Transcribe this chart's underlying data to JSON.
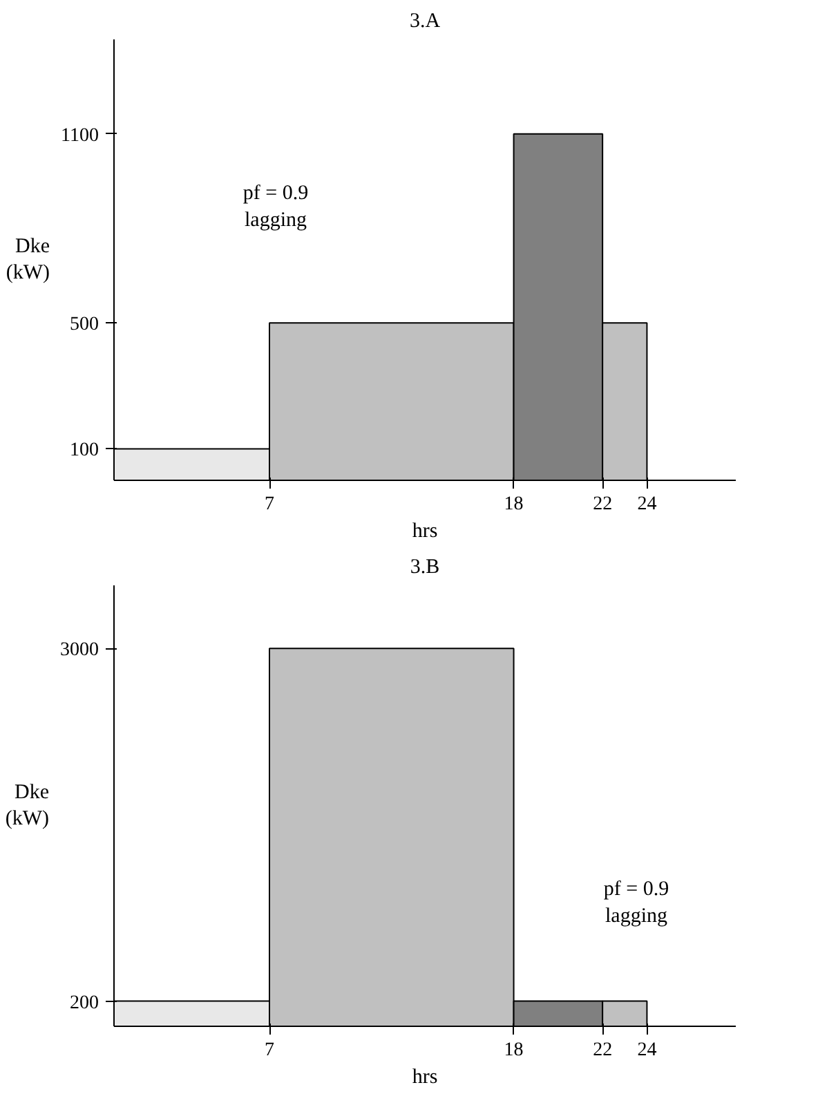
{
  "chart_data": [
    {
      "type": "histogram",
      "title": "3.A",
      "ylabel": "Dke\n(kW)",
      "xlabel": "hrs",
      "bins": [
        0,
        7,
        18,
        22,
        24
      ],
      "values": [
        100,
        500,
        1100,
        500
      ],
      "colors": [
        "#e8e8e8",
        "#c0c0c0",
        "#808080",
        "#c0c0c0"
      ],
      "xlim": [
        0,
        28
      ],
      "ylim": [
        0,
        1400
      ],
      "xticks": [
        7,
        18,
        22,
        24
      ],
      "yticks": [
        100,
        500,
        1100
      ],
      "annotations": [
        "pf = 0.9\nlagging"
      ],
      "grid": false
    },
    {
      "type": "histogram",
      "title": "3.B",
      "ylabel": "Dke\n(kW)",
      "xlabel": "hrs",
      "bins": [
        0,
        7,
        18,
        22,
        24
      ],
      "values": [
        200,
        3000,
        200,
        200
      ],
      "colors": [
        "#e8e8e8",
        "#c0c0c0",
        "#808080",
        "#c0c0c0"
      ],
      "xlim": [
        0,
        28
      ],
      "ylim": [
        0,
        3500
      ],
      "xticks": [
        7,
        18,
        22,
        24
      ],
      "yticks": [
        200,
        3000
      ],
      "annotations": [
        "pf = 0.9\nlagging"
      ],
      "grid": false
    }
  ]
}
